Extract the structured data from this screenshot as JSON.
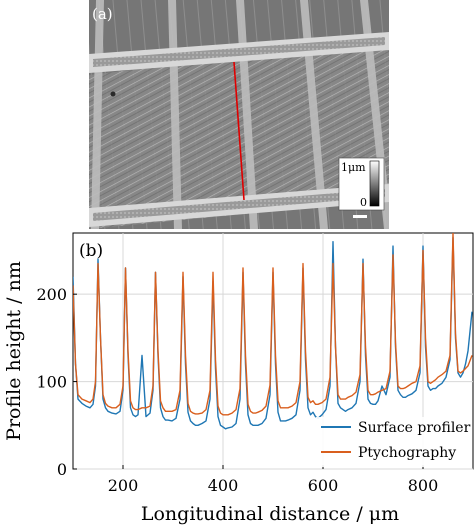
{
  "panel_a": {
    "label": "(a)",
    "scalebar": {
      "max_label": "1μm",
      "min_label": "0"
    }
  },
  "chart_data": {
    "type": "line",
    "panel_label": "(b)",
    "xlabel": "Longitudinal distance /  μm",
    "ylabel": "Profile height  / nm",
    "xlim": [
      100,
      900
    ],
    "ylim": [
      0,
      270
    ],
    "xticks": [
      200,
      400,
      600,
      800
    ],
    "yticks": [
      0,
      100,
      200
    ],
    "grid": true,
    "legend_position": "bottom-right",
    "x": [
      100,
      105,
      110,
      118,
      126,
      134,
      140,
      145,
      150,
      155,
      160,
      165,
      170,
      178,
      186,
      194,
      200,
      205,
      210,
      215,
      220,
      225,
      230,
      238,
      246,
      254,
      260,
      265,
      270,
      275,
      280,
      285,
      290,
      298,
      306,
      314,
      320,
      325,
      330,
      335,
      340,
      345,
      350,
      358,
      366,
      374,
      380,
      385,
      390,
      395,
      400,
      405,
      410,
      418,
      426,
      434,
      440,
      445,
      450,
      455,
      460,
      465,
      470,
      478,
      486,
      494,
      500,
      505,
      510,
      515,
      520,
      525,
      530,
      538,
      546,
      554,
      560,
      565,
      570,
      575,
      580,
      585,
      590,
      598,
      606,
      614,
      620,
      625,
      630,
      635,
      640,
      645,
      650,
      658,
      666,
      674,
      680,
      685,
      690,
      695,
      700,
      705,
      710,
      718,
      726,
      734,
      740,
      745,
      750,
      755,
      760,
      765,
      770,
      778,
      786,
      794,
      800,
      805,
      810,
      815,
      820,
      825,
      830,
      838,
      846,
      854,
      860,
      865,
      870,
      875,
      880,
      885,
      890,
      898
    ],
    "series": [
      {
        "name": "Surface profiler",
        "color": "#1f77b4",
        "values": [
          220,
          120,
          80,
          75,
          72,
          70,
          74,
          95,
          240,
          150,
          80,
          70,
          66,
          64,
          63,
          66,
          90,
          230,
          130,
          70,
          62,
          60,
          62,
          130,
          60,
          64,
          90,
          225,
          130,
          70,
          60,
          56,
          56,
          55,
          58,
          80,
          220,
          120,
          65,
          55,
          52,
          50,
          50,
          52,
          55,
          80,
          215,
          115,
          60,
          50,
          48,
          46,
          47,
          48,
          52,
          80,
          225,
          120,
          62,
          52,
          50,
          50,
          50,
          52,
          58,
          85,
          225,
          120,
          65,
          55,
          55,
          55,
          56,
          58,
          62,
          90,
          230,
          125,
          70,
          62,
          65,
          60,
          58,
          62,
          68,
          95,
          260,
          140,
          75,
          70,
          68,
          66,
          68,
          70,
          75,
          100,
          240,
          130,
          80,
          75,
          74,
          74,
          78,
          95,
          85,
          105,
          255,
          140,
          90,
          85,
          82,
          82,
          84,
          86,
          90,
          110,
          255,
          140,
          95,
          90,
          92,
          92,
          95,
          98,
          105,
          125,
          265,
          150,
          110,
          105,
          110,
          120,
          135,
          180
        ]
      },
      {
        "name": "Ptychography",
        "color": "#d95f1e",
        "values": [
          210,
          120,
          85,
          80,
          78,
          76,
          80,
          100,
          235,
          150,
          85,
          75,
          72,
          70,
          70,
          74,
          95,
          230,
          135,
          78,
          70,
          68,
          68,
          70,
          70,
          72,
          95,
          225,
          135,
          78,
          70,
          66,
          66,
          66,
          68,
          90,
          225,
          130,
          75,
          66,
          64,
          63,
          63,
          64,
          68,
          90,
          225,
          125,
          72,
          64,
          62,
          62,
          62,
          64,
          68,
          92,
          230,
          130,
          74,
          66,
          64,
          64,
          65,
          67,
          72,
          96,
          230,
          130,
          78,
          70,
          70,
          70,
          70,
          72,
          76,
          100,
          235,
          135,
          82,
          76,
          78,
          74,
          74,
          76,
          80,
          105,
          235,
          140,
          85,
          80,
          80,
          80,
          82,
          84,
          88,
          108,
          235,
          140,
          90,
          85,
          85,
          86,
          88,
          90,
          92,
          112,
          245,
          145,
          95,
          92,
          92,
          93,
          95,
          98,
          100,
          118,
          250,
          150,
          100,
          98,
          100,
          102,
          105,
          108,
          112,
          130,
          270,
          155,
          112,
          110,
          112,
          115,
          118,
          130
        ]
      }
    ]
  }
}
